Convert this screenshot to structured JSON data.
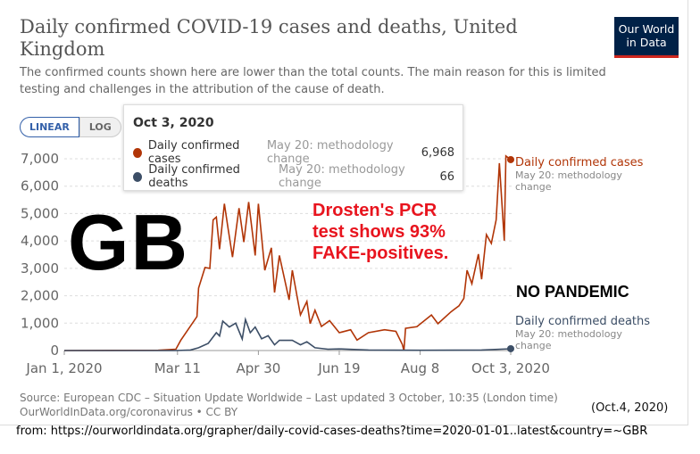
{
  "header": {
    "title": "Daily confirmed COVID-19 cases and deaths, United Kingdom",
    "subtitle": "The confirmed counts shown here are lower than the total counts. The main reason for this is limited testing and challenges in the attribution of the cause of death.",
    "logo_text": "Our World in Data"
  },
  "controls": {
    "linear": "LINEAR",
    "log": "LOG"
  },
  "tooltip": {
    "date": "Oct 3, 2020",
    "rows": [
      {
        "label": "Daily confirmed cases",
        "note": "May 20: methodology change",
        "value": "6,968",
        "color": "#b13507"
      },
      {
        "label": "Daily confirmed deaths",
        "note": "May 20: methodology change",
        "value": "66",
        "color": "#3c4e66"
      }
    ]
  },
  "footer": {
    "source": "Source: European CDC – Situation Update Worldwide – Last updated 3 October, 10:35 (London time)",
    "link": "OurWorldInData.org/coronavirus • CC BY"
  },
  "annotations": {
    "gb": "GB",
    "claim": [
      "Drosten's PCR",
      "test shows 93%",
      "FAKE-positives."
    ],
    "no_pandemic": "NO PANDEMIC",
    "date_stamp": "(Oct.4, 2020)",
    "from": "from: https://ourworldindata.org/grapher/daily-covid-cases-deaths?time=2020-01-01..latest&country=~GBR"
  },
  "chart_data": {
    "type": "line",
    "title": "Daily confirmed COVID-19 cases and deaths, United Kingdom",
    "xlim": [
      "2020-01-01",
      "2020-10-03"
    ],
    "ylim": [
      0,
      7000
    ],
    "scale": "linear",
    "grid": true,
    "x_ticks": [
      {
        "date": "2020-01-01",
        "label": "Jan 1, 2020"
      },
      {
        "date": "2020-03-11",
        "label": "Mar 11"
      },
      {
        "date": "2020-04-30",
        "label": "Apr 30"
      },
      {
        "date": "2020-06-19",
        "label": "Jun 19"
      },
      {
        "date": "2020-08-08",
        "label": "Aug 8"
      },
      {
        "date": "2020-10-03",
        "label": "Oct 3, 2020"
      }
    ],
    "y_ticks": [
      {
        "value": 0,
        "label": "0"
      },
      {
        "value": 1000,
        "label": "1,000"
      },
      {
        "value": 2000,
        "label": "2,000"
      },
      {
        "value": 3000,
        "label": "3,000"
      },
      {
        "value": 4000,
        "label": "4,000"
      },
      {
        "value": 5000,
        "label": "5,000"
      },
      {
        "value": 6000,
        "label": "6,000"
      },
      {
        "value": 7000,
        "label": "7,000"
      }
    ],
    "series": [
      {
        "name": "Daily confirmed cases",
        "note": "May 20: methodology change",
        "color": "#b13507",
        "points": [
          [
            "2020-01-01",
            0
          ],
          [
            "2020-02-28",
            10
          ],
          [
            "2020-03-10",
            50
          ],
          [
            "2020-03-13",
            370
          ],
          [
            "2020-03-23",
            1240
          ],
          [
            "2020-03-24",
            2280
          ],
          [
            "2020-03-28",
            3030
          ],
          [
            "2020-03-31",
            3000
          ],
          [
            "2020-04-02",
            4770
          ],
          [
            "2020-04-04",
            4870
          ],
          [
            "2020-04-06",
            3700
          ],
          [
            "2020-04-09",
            5360
          ],
          [
            "2020-04-11",
            4550
          ],
          [
            "2020-04-14",
            3410
          ],
          [
            "2020-04-18",
            5200
          ],
          [
            "2020-04-21",
            3960
          ],
          [
            "2020-04-24",
            5420
          ],
          [
            "2020-04-28",
            3470
          ],
          [
            "2020-04-30",
            5360
          ],
          [
            "2020-05-04",
            2930
          ],
          [
            "2020-05-08",
            3750
          ],
          [
            "2020-05-10",
            2120
          ],
          [
            "2020-05-13",
            3470
          ],
          [
            "2020-05-19",
            1850
          ],
          [
            "2020-05-21",
            2930
          ],
          [
            "2020-05-26",
            1300
          ],
          [
            "2020-05-30",
            1790
          ],
          [
            "2020-06-01",
            980
          ],
          [
            "2020-06-04",
            1470
          ],
          [
            "2020-06-08",
            880
          ],
          [
            "2020-06-13",
            1090
          ],
          [
            "2020-06-19",
            650
          ],
          [
            "2020-06-26",
            760
          ],
          [
            "2020-06-30",
            380
          ],
          [
            "2020-07-07",
            650
          ],
          [
            "2020-07-17",
            760
          ],
          [
            "2020-07-24",
            700
          ],
          [
            "2020-07-28",
            220
          ],
          [
            "2020-07-29",
            0
          ],
          [
            "2020-07-30",
            810
          ],
          [
            "2020-08-06",
            870
          ],
          [
            "2020-08-15",
            1300
          ],
          [
            "2020-08-19",
            980
          ],
          [
            "2020-08-27",
            1410
          ],
          [
            "2020-09-01",
            1630
          ],
          [
            "2020-09-04",
            1900
          ],
          [
            "2020-09-06",
            2930
          ],
          [
            "2020-09-09",
            2440
          ],
          [
            "2020-09-13",
            3520
          ],
          [
            "2020-09-15",
            2600
          ],
          [
            "2020-09-18",
            4230
          ],
          [
            "2020-09-21",
            3910
          ],
          [
            "2020-09-24",
            4770
          ],
          [
            "2020-09-26",
            6840
          ],
          [
            "2020-09-29",
            4010
          ],
          [
            "2020-09-30",
            7100
          ],
          [
            "2020-10-03",
            6968
          ]
        ]
      },
      {
        "name": "Daily confirmed deaths",
        "note": "May 20: methodology change",
        "color": "#3c4e66",
        "points": [
          [
            "2020-01-01",
            0
          ],
          [
            "2020-03-10",
            0
          ],
          [
            "2020-03-19",
            20
          ],
          [
            "2020-03-24",
            100
          ],
          [
            "2020-03-30",
            260
          ],
          [
            "2020-04-04",
            650
          ],
          [
            "2020-04-06",
            530
          ],
          [
            "2020-04-08",
            1075
          ],
          [
            "2020-04-12",
            860
          ],
          [
            "2020-04-16",
            1000
          ],
          [
            "2020-04-20",
            420
          ],
          [
            "2020-04-22",
            1130
          ],
          [
            "2020-04-25",
            650
          ],
          [
            "2020-04-28",
            860
          ],
          [
            "2020-05-02",
            430
          ],
          [
            "2020-05-06",
            540
          ],
          [
            "2020-05-10",
            210
          ],
          [
            "2020-05-13",
            370
          ],
          [
            "2020-05-21",
            370
          ],
          [
            "2020-05-26",
            210
          ],
          [
            "2020-05-30",
            320
          ],
          [
            "2020-06-04",
            100
          ],
          [
            "2020-06-12",
            50
          ],
          [
            "2020-06-19",
            60
          ],
          [
            "2020-07-07",
            20
          ],
          [
            "2020-08-08",
            10
          ],
          [
            "2020-09-15",
            20
          ],
          [
            "2020-10-03",
            66
          ]
        ]
      }
    ]
  }
}
